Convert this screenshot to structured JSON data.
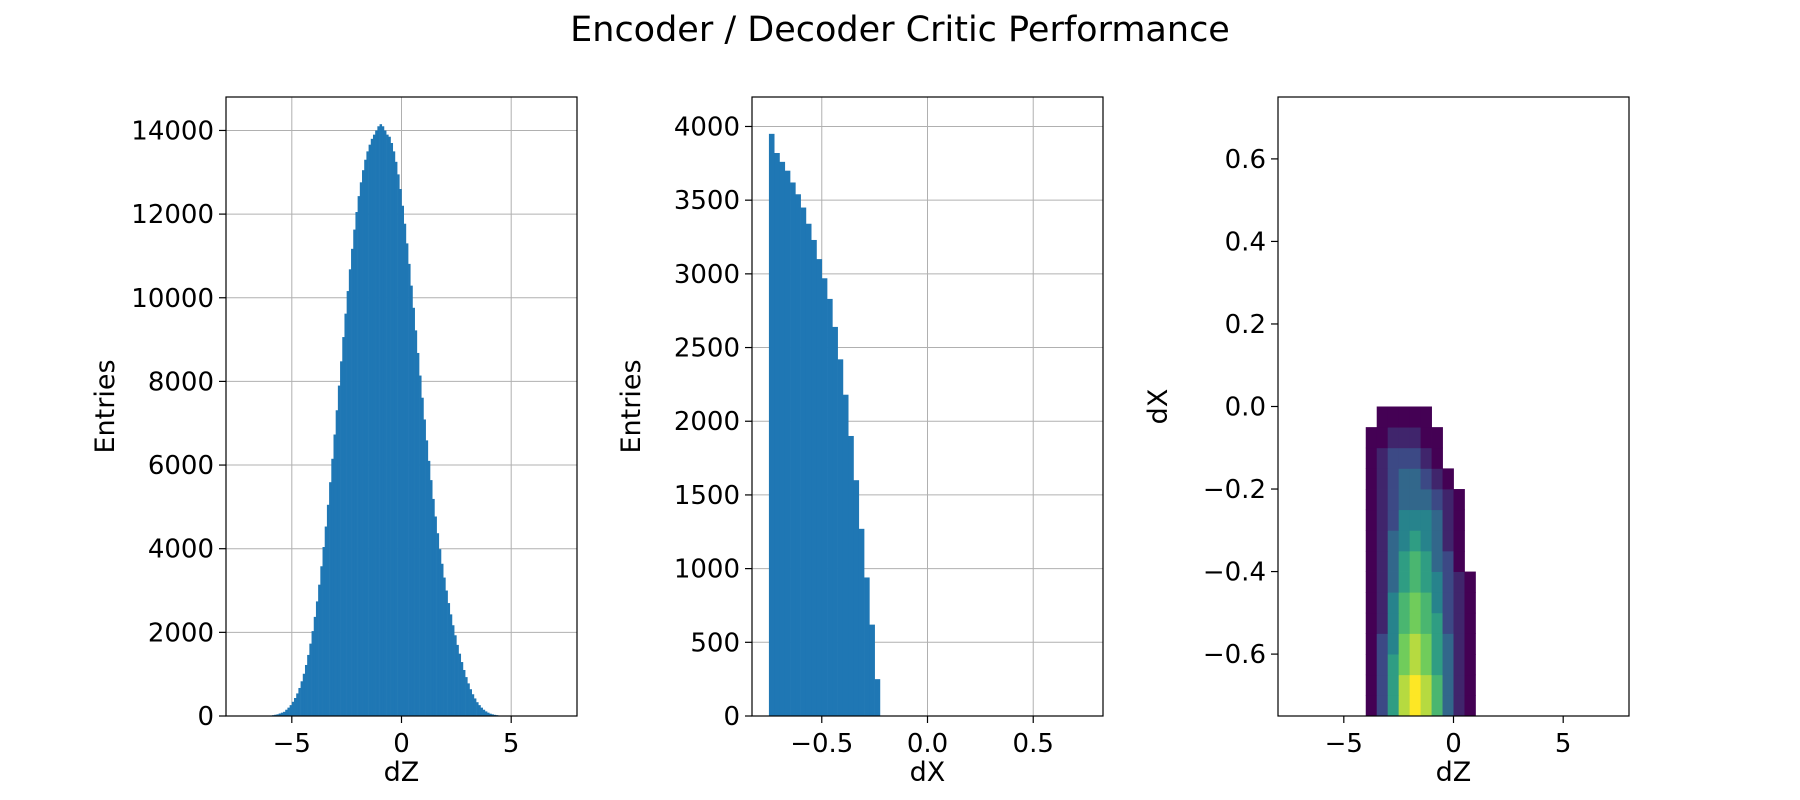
{
  "figure": {
    "title": "Encoder / Decoder Critic Performance"
  },
  "chart_data": [
    {
      "type": "bar",
      "subtype": "histogram",
      "xlabel": "dZ",
      "ylabel": "Entries",
      "xlim": [
        -8,
        8
      ],
      "ylim": [
        0,
        14800
      ],
      "xticks": [
        -5,
        0,
        5
      ],
      "xtick_labels": [
        "−5",
        "0",
        "5"
      ],
      "yticks": [
        0,
        2000,
        4000,
        6000,
        8000,
        10000,
        12000,
        14000
      ],
      "ytick_labels": [
        "0",
        "2000",
        "4000",
        "6000",
        "8000",
        "10000",
        "12000",
        "14000"
      ],
      "grid": true,
      "color": "#1f77b4",
      "bins": {
        "x_start": -6.0,
        "bin_width": 0.1,
        "values": [
          10,
          20,
          30,
          40,
          60,
          80,
          100,
          150,
          200,
          260,
          340,
          430,
          540,
          670,
          830,
          1010,
          1220,
          1460,
          1730,
          2030,
          2370,
          2740,
          3140,
          3580,
          4040,
          4530,
          5050,
          5590,
          6150,
          6730,
          7310,
          7900,
          8480,
          9060,
          9620,
          10160,
          10680,
          11170,
          11630,
          12050,
          12430,
          12760,
          13050,
          13300,
          13500,
          13660,
          13800,
          13900,
          14000,
          14100,
          14150,
          14100,
          14000,
          13900,
          13850,
          13700,
          13500,
          13250,
          12950,
          12600,
          12200,
          11770,
          11300,
          10810,
          10290,
          9760,
          9220,
          8680,
          8140,
          7610,
          7090,
          6590,
          6100,
          5640,
          5190,
          4770,
          4370,
          3990,
          3640,
          3310,
          3000,
          2700,
          2430,
          2170,
          1930,
          1700,
          1490,
          1290,
          1100,
          930,
          780,
          640,
          520,
          420,
          330,
          260,
          200,
          150,
          110,
          80,
          55,
          40,
          28,
          20,
          12,
          8,
          5,
          3
        ]
      }
    },
    {
      "type": "bar",
      "subtype": "histogram",
      "xlabel": "dX",
      "ylabel": "Entries",
      "xlim": [
        -0.83,
        0.83
      ],
      "ylim": [
        0,
        4200
      ],
      "xticks": [
        -0.5,
        0.0,
        0.5
      ],
      "xtick_labels": [
        "−0.5",
        "0.0",
        "0.5"
      ],
      "yticks": [
        0,
        500,
        1000,
        1500,
        2000,
        2500,
        3000,
        3500,
        4000
      ],
      "ytick_labels": [
        "0",
        "500",
        "1000",
        "1500",
        "2000",
        "2500",
        "3000",
        "3500",
        "4000"
      ],
      "grid": true,
      "color": "#1f77b4",
      "bins": {
        "x_start": -0.75,
        "bin_width": 0.025,
        "values": [
          3950,
          3820,
          3760,
          3700,
          3620,
          3540,
          3450,
          3340,
          3230,
          3100,
          2970,
          2830,
          2640,
          2420,
          2180,
          1900,
          1600,
          1270,
          940,
          620,
          250
        ]
      }
    },
    {
      "type": "heatmap",
      "subtype": "2d-histogram",
      "xlabel": "dZ",
      "ylabel": "dX",
      "xlim": [
        -8,
        8
      ],
      "ylim": [
        -0.75,
        0.75
      ],
      "xticks": [
        -5,
        0,
        5
      ],
      "xtick_labels": [
        "−5",
        "0",
        "5"
      ],
      "yticks": [
        -0.6,
        -0.4,
        -0.2,
        0.0,
        0.2,
        0.4,
        0.6
      ],
      "ytick_labels": [
        "−0.6",
        "−0.4",
        "−0.2",
        "0.0",
        "0.2",
        "0.4",
        "0.6"
      ],
      "grid": false,
      "colormap": "viridis",
      "colormap_stops": [
        "#440154",
        "#3b528b",
        "#21918c",
        "#5ec962",
        "#fde725"
      ],
      "bins": {
        "x_start": -4.5,
        "x_step": 0.5,
        "y_start": -0.75,
        "y_step": 0.05,
        "rows": [
          [
            0,
            1,
            3,
            6,
            9,
            10,
            9,
            7,
            4,
            2,
            1,
            0
          ],
          [
            0,
            1,
            3,
            6,
            9,
            10,
            9,
            7,
            4,
            2,
            1,
            0
          ],
          [
            0,
            1,
            3,
            6,
            8,
            9,
            8,
            6,
            4,
            2,
            1,
            0
          ],
          [
            0,
            1,
            3,
            5,
            8,
            9,
            8,
            6,
            4,
            2,
            1,
            0
          ],
          [
            0,
            1,
            2,
            5,
            7,
            8,
            7,
            6,
            3,
            2,
            1,
            0
          ],
          [
            0,
            1,
            2,
            5,
            7,
            8,
            7,
            5,
            3,
            2,
            1,
            0
          ],
          [
            0,
            1,
            2,
            4,
            6,
            7,
            6,
            5,
            3,
            2,
            1,
            0
          ],
          [
            0,
            1,
            2,
            4,
            6,
            7,
            6,
            4,
            3,
            1,
            0,
            0
          ],
          [
            0,
            1,
            2,
            4,
            5,
            6,
            5,
            4,
            2,
            1,
            0,
            0
          ],
          [
            0,
            1,
            2,
            3,
            5,
            5,
            5,
            4,
            2,
            1,
            0,
            0
          ],
          [
            0,
            1,
            2,
            3,
            4,
            4,
            4,
            3,
            2,
            1,
            0,
            0
          ],
          [
            0,
            1,
            2,
            3,
            4,
            4,
            3,
            2,
            1,
            0,
            0,
            0
          ],
          [
            0,
            1,
            2,
            3,
            3,
            3,
            2,
            1,
            0,
            0,
            0,
            0
          ],
          [
            0,
            1,
            1,
            2,
            2,
            2,
            1,
            1,
            0,
            0,
            0,
            0
          ],
          [
            0,
            0,
            1,
            1,
            1,
            1,
            1,
            0,
            0,
            0,
            0,
            0
          ]
        ]
      }
    }
  ]
}
